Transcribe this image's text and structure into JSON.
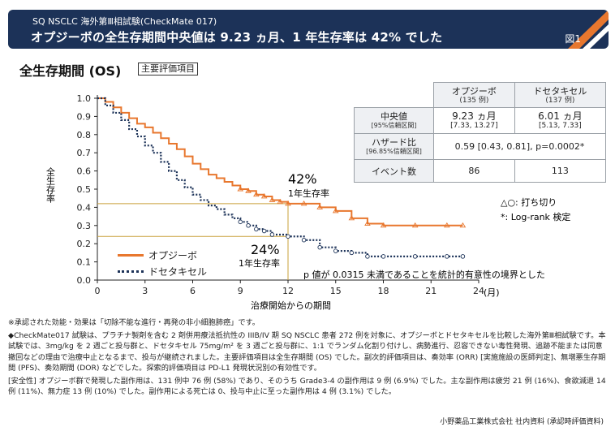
{
  "header": {
    "pre": "SQ NSCLC 海外第Ⅲ相試験(CheckMate 017)",
    "title": "オプジーボの全生存期間中央値は 9.23 ヵ月、1 年生存率は 42% でした",
    "figure": "図1"
  },
  "os_title": "全生存期間 (OS)",
  "primary_tag": "主要評価項目",
  "table": {
    "col1": "オプジーボ",
    "col1_n": "(135 例)",
    "col2": "ドセタキセル",
    "col2_n": "(137 例)",
    "row1_label": "中央値",
    "row1_sub": "[95%信頼区間]",
    "row1_v1": "9.23 ヵ月",
    "row1_v1_ci": "[7.33, 13.27]",
    "row1_v2": "6.01 ヵ月",
    "row1_v2_ci": "[5.13, 7.33]",
    "row2_label": "ハザード比",
    "row2_sub": "[96.85%信頼区間]",
    "row2_value": "0.59 [0.43, 0.81], p=0.0002*",
    "row3_label": "イベント数",
    "row3_v1": "86",
    "row3_v2": "113"
  },
  "censor_note": "△○: 打ち切り",
  "test_note": "*: Log-rank 検定",
  "legend": {
    "nivolumab": "オプジーボ",
    "docetaxel": "ドセタキセル"
  },
  "pvalue_note": "p 値が 0.0315 未満であることを統計的有意性の境界とした",
  "annotations": {
    "nivo_pct": "42%",
    "nivo_label": "1年生存率",
    "doce_pct": "24%",
    "doce_label": "1年生存率"
  },
  "chart_data": {
    "type": "line",
    "xlabel": "治療開始からの期間",
    "x_unit": "(月)",
    "ylabel": "全生存率",
    "xlim": [
      0,
      24
    ],
    "ylim": [
      0,
      1.0
    ],
    "xticks": [
      "0",
      "3",
      "6",
      "9",
      "12",
      "15",
      "18",
      "21",
      "24"
    ],
    "yticks": [
      "0.0",
      "0.1",
      "0.2",
      "0.3",
      "0.4",
      "0.5",
      "0.6",
      "0.7",
      "0.8",
      "0.9",
      "1.0"
    ],
    "series": [
      {
        "name": "オプジーボ",
        "color": "#e8772e",
        "points": [
          [
            0,
            1.0
          ],
          [
            0.5,
            0.98
          ],
          [
            1,
            0.95
          ],
          [
            1.5,
            0.92
          ],
          [
            2,
            0.89
          ],
          [
            2.5,
            0.86
          ],
          [
            3,
            0.84
          ],
          [
            3.5,
            0.81
          ],
          [
            4,
            0.78
          ],
          [
            4.5,
            0.75
          ],
          [
            5,
            0.72
          ],
          [
            5.5,
            0.68
          ],
          [
            6,
            0.64
          ],
          [
            6.5,
            0.61
          ],
          [
            7,
            0.58
          ],
          [
            7.5,
            0.56
          ],
          [
            8,
            0.54
          ],
          [
            8.5,
            0.52
          ],
          [
            9,
            0.5
          ],
          [
            9.5,
            0.49
          ],
          [
            10,
            0.47
          ],
          [
            10.5,
            0.46
          ],
          [
            11,
            0.44
          ],
          [
            11.5,
            0.43
          ],
          [
            12,
            0.42
          ],
          [
            13,
            0.42
          ],
          [
            14,
            0.4
          ],
          [
            15,
            0.38
          ],
          [
            16,
            0.34
          ],
          [
            17,
            0.31
          ],
          [
            18,
            0.3
          ],
          [
            20,
            0.3
          ],
          [
            22,
            0.3
          ],
          [
            23,
            0.3
          ]
        ]
      },
      {
        "name": "ドセタキセル",
        "color": "#1c3258",
        "points": [
          [
            0,
            1.0
          ],
          [
            0.5,
            0.96
          ],
          [
            1,
            0.92
          ],
          [
            1.5,
            0.88
          ],
          [
            2,
            0.83
          ],
          [
            2.5,
            0.79
          ],
          [
            3,
            0.74
          ],
          [
            3.5,
            0.7
          ],
          [
            4,
            0.65
          ],
          [
            4.5,
            0.6
          ],
          [
            5,
            0.55
          ],
          [
            5.5,
            0.51
          ],
          [
            6,
            0.47
          ],
          [
            6.5,
            0.44
          ],
          [
            7,
            0.41
          ],
          [
            7.5,
            0.39
          ],
          [
            8,
            0.36
          ],
          [
            8.5,
            0.34
          ],
          [
            9,
            0.32
          ],
          [
            9.5,
            0.3
          ],
          [
            10,
            0.28
          ],
          [
            10.5,
            0.27
          ],
          [
            11,
            0.25
          ],
          [
            12,
            0.24
          ],
          [
            13,
            0.22
          ],
          [
            14,
            0.18
          ],
          [
            15,
            0.16
          ],
          [
            16,
            0.15
          ],
          [
            17,
            0.13
          ],
          [
            18,
            0.13
          ],
          [
            20,
            0.13
          ],
          [
            22,
            0.13
          ],
          [
            23,
            0.13
          ]
        ]
      }
    ],
    "reference_points": [
      {
        "x": 12,
        "y": 0.42,
        "label": "42%"
      },
      {
        "x": 12,
        "y": 0.24,
        "label": "24%"
      }
    ]
  },
  "footnotes": {
    "note1": "※承認された効能・効果は「切除不能な進行・再発の非小細胞肺癌」です。",
    "note2": "◆CheckMate017 試験は、プラチナ製剤を含む 2 剤併用療法抵抗性の IIIB/IV 期 SQ NSCLC 患者 272 例を対象に、オプジーボとドセタキセルを比較した海外第Ⅲ相試験です。本試験では、3mg/kg を 2 週ごと投与群と、ドセタキセル 75mg/m² を 3 週ごと投与群に、1:1 でランダム化割り付けし、病勢進行、忍容できない毒性発現、追跡不能または同意撤回などの理由で治療中止となるまで、投与が継続されました。主要評価項目は全生存期間 (OS) でした。副次的評価項目は、奏効率 (ORR) [実施施設の医師判定]、無増悪生存期間 (PFS)、奏効期間 (DOR) などでした。探索的評価項目は PD-L1 発現状況別の有効性です。",
    "note3": "[安全性] オプジーボ群で発現した副作用は、131 例中 76 例 (58%) であり、そのうち Grade3-4 の副作用は 9 例 (6.9%) でした。主な副作用は疲労 21 例 (16%)、食欲減退 14 例 (11%)、無力症 13 例 (10%) でした。副作用による死亡は 0、投与中止に至った副作用は 4 例 (3.1%) でした。"
  },
  "source": "小野薬品工業株式会社 社内資料 (承認時評価資料)"
}
